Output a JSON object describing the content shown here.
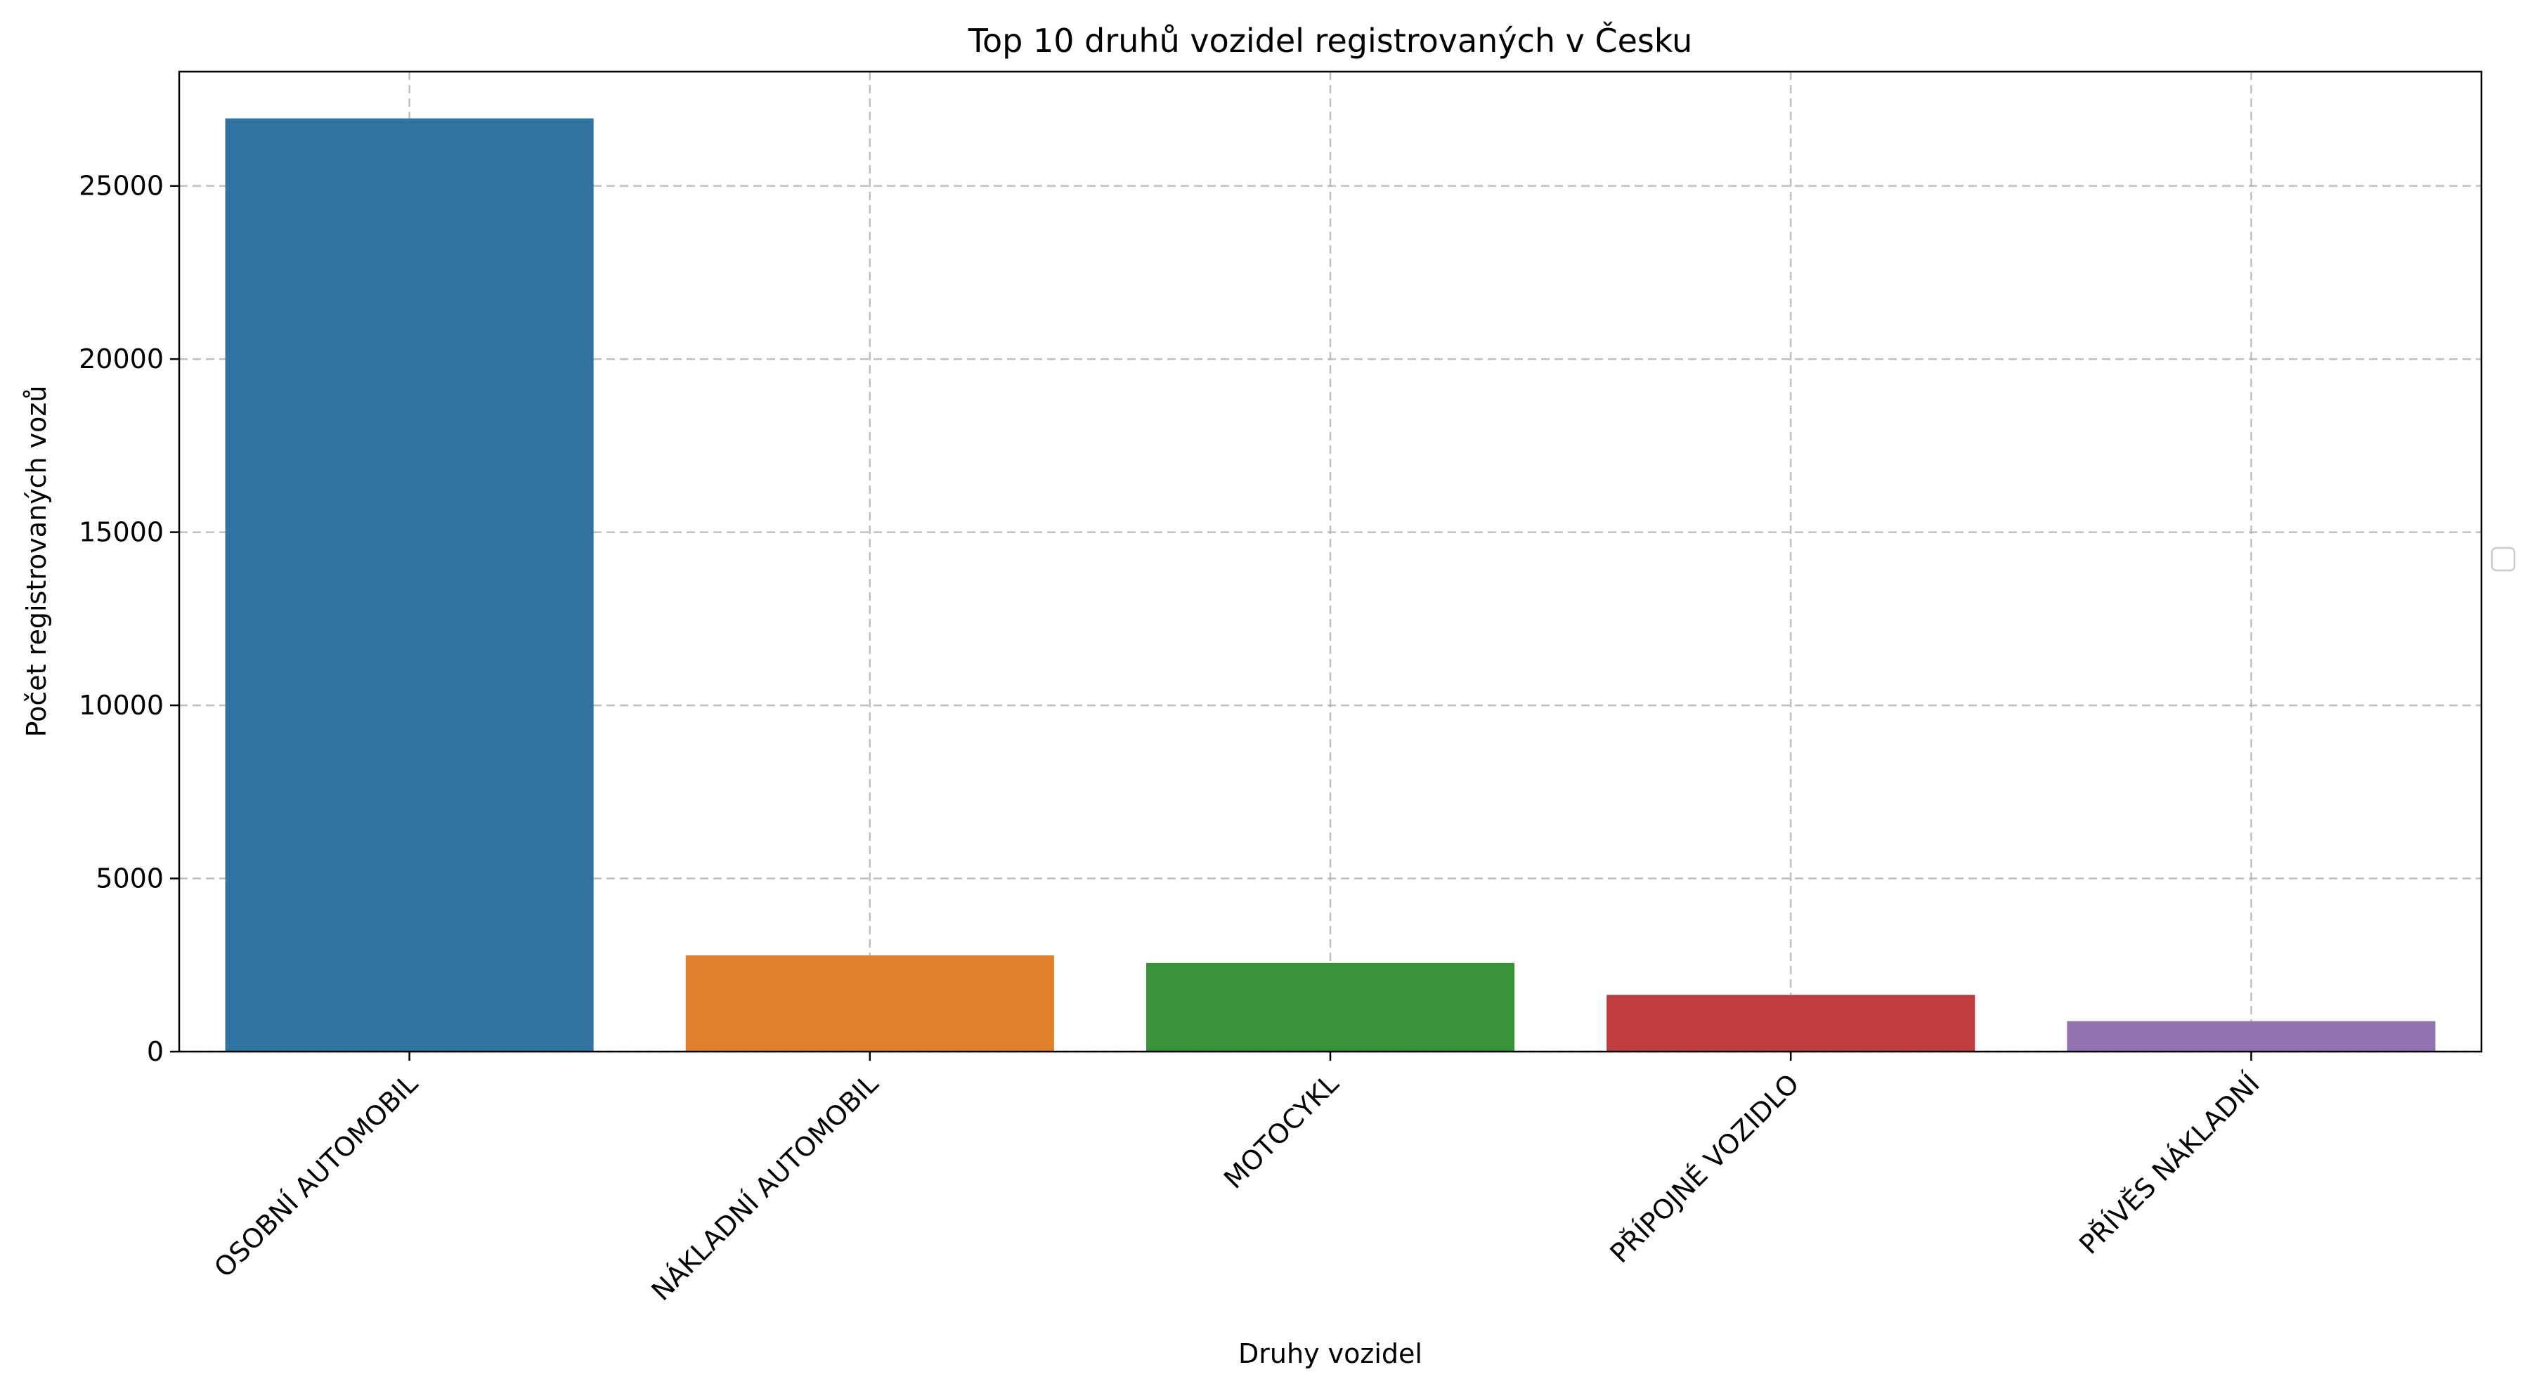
{
  "chart_data": {
    "type": "bar",
    "title": "Top 10 druhů vozidel registrovaných v Česku",
    "xlabel": "Druhy vozidel",
    "ylabel": "Počet registrovaných vozů",
    "categories": [
      "OSOBNÍ AUTOMOBIL",
      "NÁKLADNÍ AUTOMOBIL",
      "MOTOCYKL",
      "PŘÍPOJNÉ VOZIDLO",
      "PŘÍVĚS NÁKLADNÍ"
    ],
    "values": [
      26950,
      2780,
      2560,
      1640,
      880
    ],
    "colors": [
      "#3274a1",
      "#e1812c",
      "#3a923a",
      "#c03d3e",
      "#9372b2"
    ],
    "yticks": [
      0,
      5000,
      10000,
      15000,
      20000,
      25000
    ],
    "ylim": [
      0,
      28300
    ],
    "grid": true,
    "legend": "empty, center-right"
  }
}
